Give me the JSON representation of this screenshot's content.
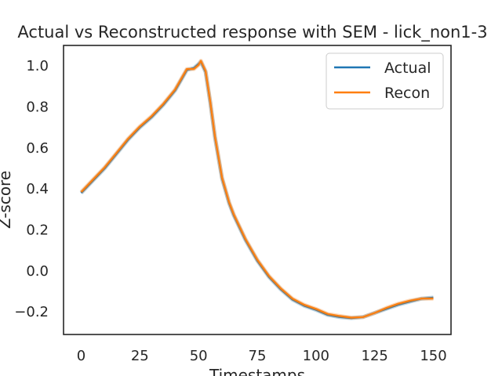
{
  "chart_data": {
    "type": "line",
    "title": "Actual vs Reconstructed response with SEM - lick_non1-3",
    "xlabel": "Timestamps",
    "ylabel": "Z-score",
    "xlim": [
      -7.5,
      157.5
    ],
    "ylim": [
      -0.31,
      1.1
    ],
    "xticks": [
      0,
      25,
      50,
      75,
      100,
      125,
      150
    ],
    "yticks": [
      -0.2,
      0.0,
      0.2,
      0.4,
      0.6,
      0.8,
      1.0
    ],
    "ytick_labels": [
      "−0.2",
      "0.0",
      "0.2",
      "0.4",
      "0.6",
      "0.8",
      "1.0"
    ],
    "grid": false,
    "legend_position": "top-right",
    "x": [
      0,
      5,
      10,
      15,
      20,
      25,
      30,
      35,
      40,
      43,
      45,
      48,
      50,
      51,
      53,
      55,
      57,
      60,
      63,
      65,
      70,
      75,
      80,
      85,
      90,
      95,
      100,
      105,
      110,
      115,
      120,
      125,
      130,
      135,
      140,
      145,
      150
    ],
    "series": [
      {
        "name": "Actual",
        "color": "#1f77b4",
        "values": [
          0.38,
          0.44,
          0.5,
          0.57,
          0.64,
          0.7,
          0.75,
          0.81,
          0.88,
          0.94,
          0.98,
          0.99,
          1.01,
          1.02,
          0.97,
          0.82,
          0.65,
          0.45,
          0.33,
          0.27,
          0.15,
          0.05,
          -0.03,
          -0.09,
          -0.14,
          -0.17,
          -0.19,
          -0.215,
          -0.225,
          -0.23,
          -0.225,
          -0.205,
          -0.185,
          -0.165,
          -0.15,
          -0.135,
          -0.13
        ]
      },
      {
        "name": "Recon",
        "color": "#ff7f0e",
        "values": [
          0.385,
          0.445,
          0.505,
          0.575,
          0.645,
          0.705,
          0.755,
          0.815,
          0.885,
          0.945,
          0.985,
          0.985,
          1.005,
          1.025,
          0.975,
          0.825,
          0.655,
          0.455,
          0.335,
          0.275,
          0.155,
          0.055,
          -0.025,
          -0.085,
          -0.135,
          -0.165,
          -0.185,
          -0.21,
          -0.22,
          -0.228,
          -0.225,
          -0.205,
          -0.18,
          -0.16,
          -0.145,
          -0.135,
          -0.135
        ]
      }
    ]
  }
}
